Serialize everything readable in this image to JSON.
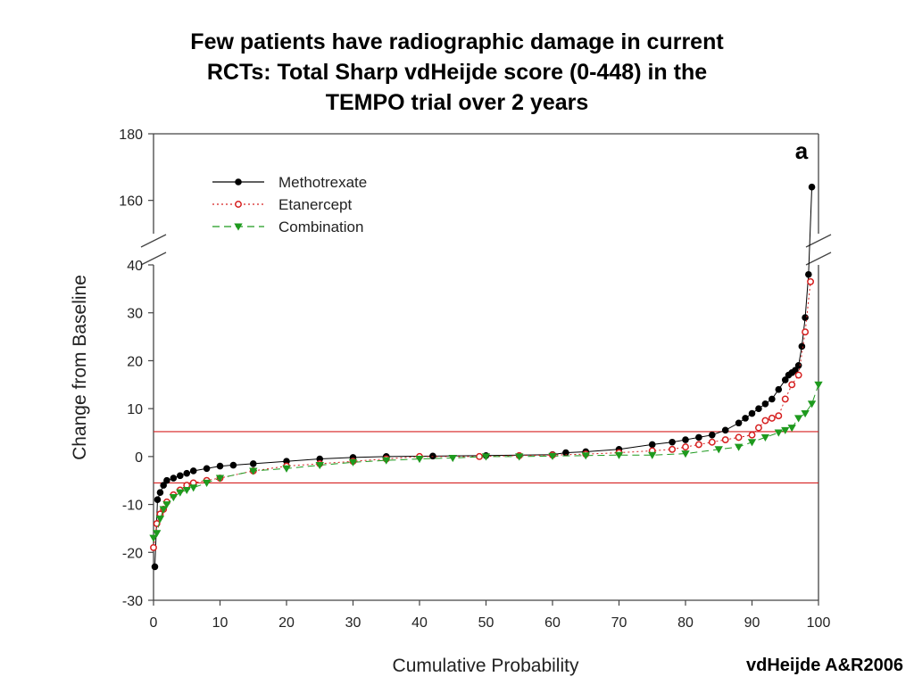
{
  "slide": {
    "title_lines": [
      "Few patients have radiographic damage in current",
      "RCTs: Total Sharp vdHeijde score (0-448) in the",
      "TEMPO trial over 2 years"
    ],
    "credit": "vdHeijde A&R2006"
  },
  "chart_data": {
    "type": "scatter",
    "panel_label": "a",
    "xlabel": "Cumulative Probability",
    "ylabel": "Change from Baseline",
    "xlim": [
      0,
      100
    ],
    "ylim_lower": [
      -30,
      40
    ],
    "ylim_upper": [
      150,
      180
    ],
    "axis_break": true,
    "x_ticks": [
      "0",
      "10",
      "20",
      "30",
      "40",
      "50",
      "60",
      "70",
      "80",
      "90",
      "100"
    ],
    "y_ticks_lower": [
      "-30",
      "-20",
      "-10",
      "0",
      "10",
      "20",
      "30",
      "40"
    ],
    "y_ticks_upper": [
      "160",
      "180"
    ],
    "reference_lines": [
      5.2,
      -5.5
    ],
    "reference_line_color": "#d62020",
    "legend_position": "upper-left",
    "series": [
      {
        "name": "Methotrexate",
        "marker": "filled-circle",
        "line": "solid",
        "color": "#000000",
        "x": [
          0.2,
          0.6,
          1,
          1.5,
          2,
          3,
          4,
          5,
          6,
          8,
          10,
          12,
          15,
          20,
          25,
          30,
          35,
          42,
          50,
          60,
          62,
          65,
          70,
          75,
          78,
          80,
          82,
          84,
          86,
          88,
          89,
          90,
          91,
          92,
          93,
          94,
          95,
          95.5,
          96,
          96.5,
          97,
          97.5,
          98,
          98.5,
          99
        ],
        "y": [
          -23,
          -9,
          -7.5,
          -6,
          -5,
          -4.5,
          -4,
          -3.5,
          -3,
          -2.5,
          -2,
          -1.8,
          -1.5,
          -1,
          -0.5,
          -0.2,
          0,
          0.1,
          0.2,
          0.4,
          0.8,
          1,
          1.5,
          2.5,
          3,
          3.5,
          4,
          4.5,
          5.5,
          7,
          8,
          9,
          10,
          11,
          12,
          14,
          16,
          17,
          17.5,
          18,
          19,
          23,
          29,
          38,
          164
        ]
      },
      {
        "name": "Etanercept",
        "marker": "open-circle",
        "line": "dotted",
        "color": "#d62020",
        "x": [
          0,
          0.5,
          1,
          1.5,
          2,
          3,
          4,
          5,
          6,
          8,
          10,
          15,
          20,
          25,
          30,
          35,
          40,
          49,
          55,
          60,
          65,
          70,
          75,
          78,
          80,
          82,
          84,
          86,
          88,
          90,
          91,
          92,
          93,
          94,
          95,
          96,
          97,
          98,
          98.8
        ],
        "y": [
          -19,
          -14,
          -12,
          -11,
          -9.5,
          -8,
          -7,
          -6,
          -5.5,
          -5,
          -4.5,
          -3,
          -2,
          -1.5,
          -1,
          -0.5,
          0,
          0,
          0.2,
          0.3,
          0.5,
          0.8,
          1.2,
          1.5,
          2,
          2.5,
          3,
          3.5,
          4,
          4.5,
          6,
          7.5,
          8,
          8.5,
          12,
          15,
          17,
          26,
          36.5
        ]
      },
      {
        "name": "Combination",
        "marker": "filled-triangle-down",
        "line": "dashed",
        "color": "#1e9a1e",
        "x": [
          0,
          0.5,
          1,
          1.5,
          2,
          3,
          4,
          5,
          6,
          8,
          10,
          15,
          20,
          25,
          30,
          35,
          40,
          45,
          50,
          55,
          60,
          65,
          70,
          75,
          80,
          85,
          88,
          90,
          92,
          94,
          95,
          96,
          97,
          98,
          99,
          100
        ],
        "y": [
          -17,
          -16,
          -13,
          -11,
          -10,
          -8.5,
          -7.5,
          -7,
          -6.5,
          -5.5,
          -4.5,
          -3,
          -2.5,
          -1.8,
          -1.2,
          -0.8,
          -0.5,
          -0.3,
          0,
          0,
          0.1,
          0.2,
          0.3,
          0.3,
          0.6,
          1.5,
          2,
          3,
          4,
          5,
          5.5,
          6,
          8,
          9,
          11,
          15
        ]
      }
    ]
  }
}
